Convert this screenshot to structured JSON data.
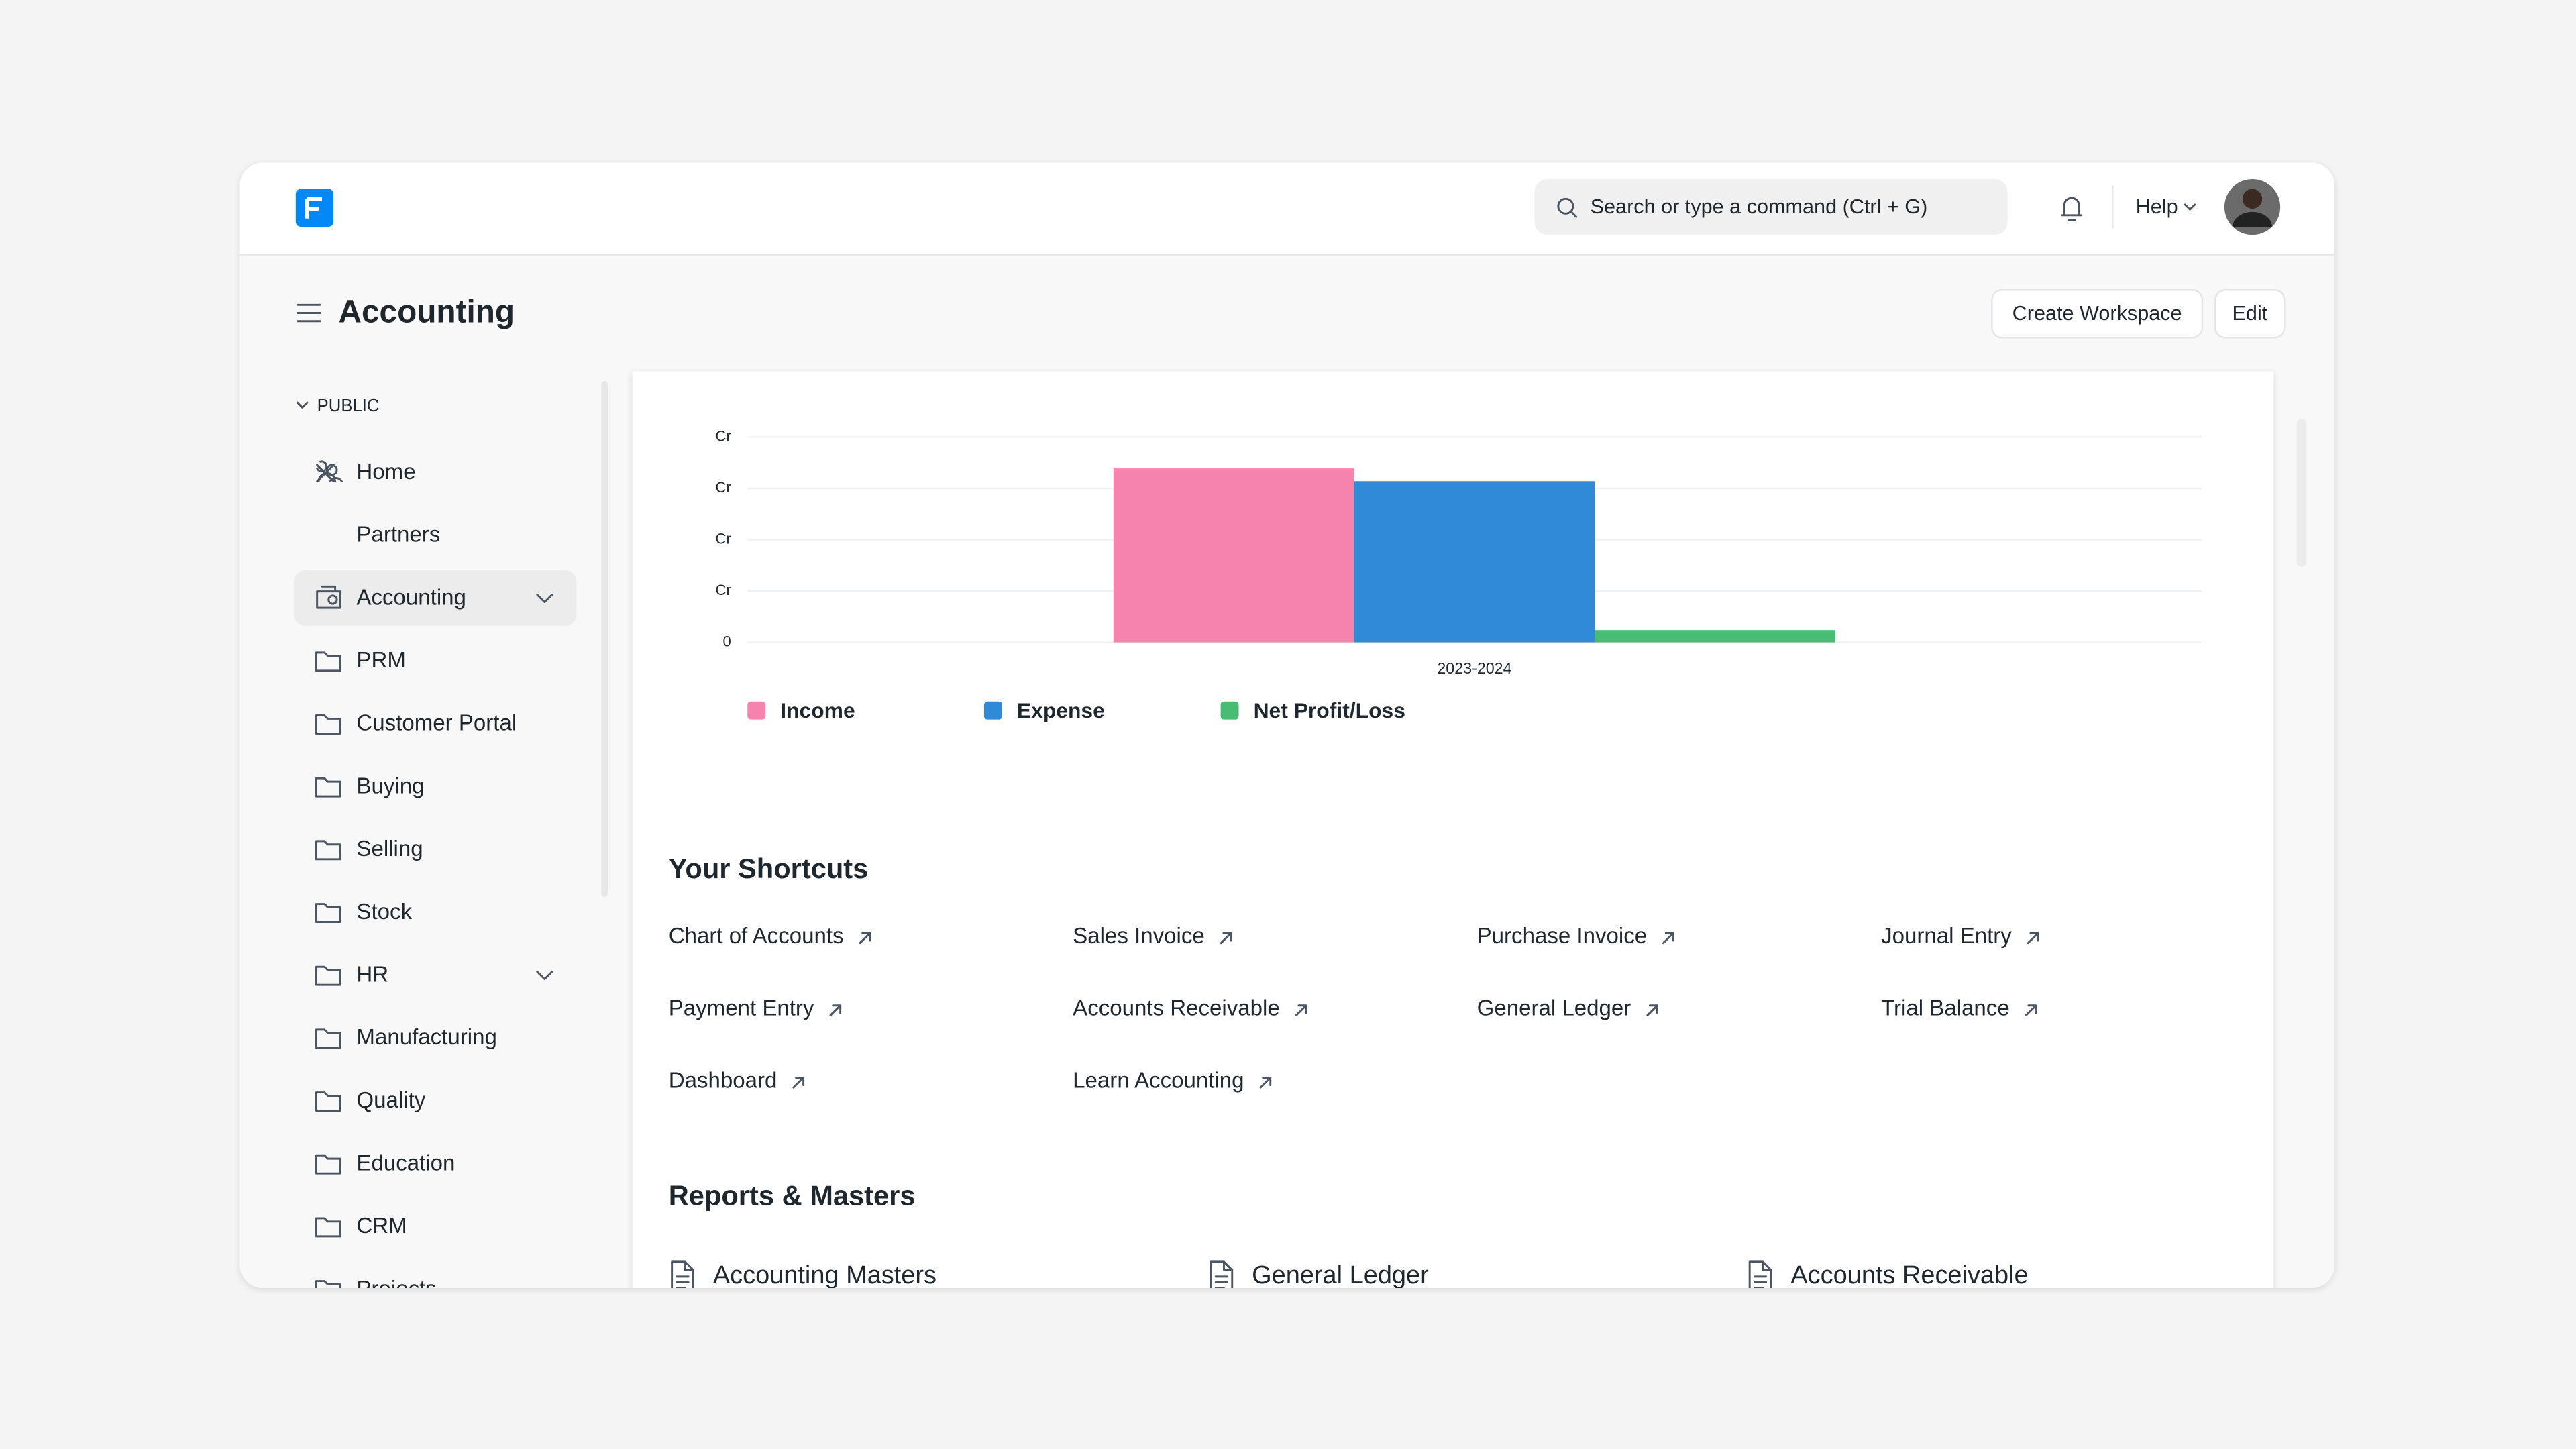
{
  "navbar": {
    "search_placeholder": "Search or type a command (Ctrl + G)",
    "help": "Help"
  },
  "page": {
    "title": "Accounting",
    "buttons": [
      "Create Workspace",
      "Edit"
    ]
  },
  "sidebar": {
    "section": "PUBLIC",
    "items": [
      "Home",
      "Partners",
      "Accounting",
      "PRM",
      "Customer Portal",
      "Buying",
      "Selling",
      "Stock",
      "HR",
      "Manufacturing",
      "Quality",
      "Education",
      "CRM",
      "Projects"
    ]
  },
  "chart_data": {
    "type": "bar",
    "categories": [
      "2023-2024"
    ],
    "series": [
      {
        "name": "Income",
        "color": "#f683ae",
        "values": [
          3.39
        ]
      },
      {
        "name": "Expense",
        "color": "#318ad8",
        "values": [
          3.14
        ]
      },
      {
        "name": "Net Profit/Loss",
        "color": "#48bb74",
        "values": [
          0.24
        ]
      }
    ],
    "ylim": [
      0,
      4
    ],
    "yticks": [
      0,
      {
        "value": 1,
        "label": "Cr"
      },
      {
        "value": 2,
        "label": "Cr"
      },
      {
        "value": 3,
        "label": "Cr"
      },
      {
        "value": 4,
        "label": "Cr"
      }
    ],
    "grid": true
  },
  "shortcuts": {
    "title": "Your Shortcuts",
    "items": [
      "Chart of Accounts",
      "Sales Invoice",
      "Purchase Invoice",
      "Journal Entry",
      "Payment Entry",
      "Accounts Receivable",
      "General Ledger",
      "Trial Balance",
      "Dashboard",
      "Learn Accounting"
    ]
  },
  "reports": {
    "title": "Reports & Masters",
    "items": [
      "Accounting Masters",
      "General Ledger",
      "Accounts Receivable"
    ]
  }
}
